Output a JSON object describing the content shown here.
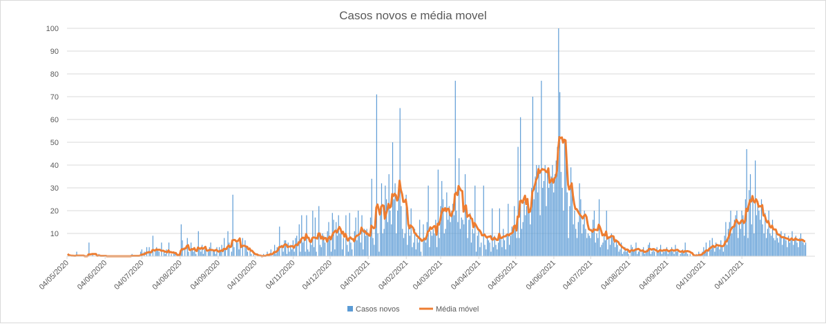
{
  "chart_data": {
    "type": "bar+line",
    "title": "Casos novos e média movel",
    "xlabel": "",
    "ylabel": "",
    "ylim": [
      0,
      100
    ],
    "yticks": [
      10,
      20,
      30,
      40,
      50,
      60,
      70,
      80,
      90,
      100
    ],
    "grid": true,
    "legend_position": "bottom",
    "start_date": "2020-05-04",
    "x_tick_labels": [
      "04/05/2020",
      "04/06/2020",
      "04/07/2020",
      "04/08/2020",
      "04/09/2020",
      "04/10/2020",
      "04/11/2020",
      "04/12/2020",
      "04/01/2021",
      "04/02/2021",
      "04/03/2021",
      "04/04/2021",
      "04/05/2021",
      "04/06/2021",
      "04/07/2021",
      "04/08/2021",
      "04/09/2021",
      "04/10/2021",
      "04/11/2021"
    ],
    "moving_average_window": 7,
    "series": [
      {
        "name": "Casos novos",
        "type": "bar",
        "color": "#5B9BD5",
        "values": [
          1,
          0,
          0,
          0,
          0,
          0,
          0,
          2,
          0,
          0,
          0,
          0,
          0,
          0,
          0,
          0,
          0,
          6,
          0,
          0,
          1,
          0,
          0,
          0,
          0,
          1,
          0,
          0,
          0,
          0,
          0,
          0,
          0,
          0,
          0,
          0,
          0,
          0,
          0,
          0,
          0,
          0,
          0,
          0,
          0,
          0,
          0,
          0,
          0,
          0,
          0,
          0,
          1,
          0,
          0,
          0,
          0,
          0,
          0,
          2,
          3,
          0,
          2,
          0,
          4,
          0,
          4,
          2,
          0,
          9,
          0,
          2,
          4,
          3,
          2,
          0,
          6,
          0,
          2,
          1,
          3,
          0,
          6,
          0,
          1,
          0,
          2,
          1,
          0,
          0,
          0,
          0,
          14,
          7,
          0,
          3,
          0,
          8,
          2,
          0,
          6,
          3,
          2,
          4,
          1,
          0,
          11,
          3,
          2,
          5,
          1,
          3,
          4,
          0,
          2,
          4,
          6,
          0,
          3,
          2,
          1,
          4,
          0,
          4,
          2,
          5,
          0,
          8,
          3,
          0,
          11,
          6,
          0,
          2,
          27,
          4,
          0,
          7,
          6,
          3,
          8,
          0,
          8,
          0,
          7,
          4,
          2,
          0,
          3,
          1,
          0,
          2,
          0,
          0,
          0,
          0,
          0,
          0,
          0,
          1,
          0,
          0,
          2,
          1,
          0,
          3,
          0,
          2,
          5,
          1,
          4,
          3,
          13,
          0,
          5,
          2,
          7,
          7,
          1,
          6,
          2,
          5,
          3,
          7,
          2,
          8,
          9,
          0,
          14,
          2,
          18,
          6,
          8,
          2,
          18,
          3,
          2,
          6,
          5,
          20,
          4,
          17,
          2,
          0,
          22,
          5,
          4,
          10,
          9,
          6,
          0,
          11,
          15,
          9,
          2,
          19,
          16,
          3,
          15,
          9,
          18,
          10,
          12,
          3,
          8,
          0,
          18,
          5,
          2,
          19,
          6,
          3,
          0,
          11,
          17,
          7,
          20,
          9,
          6,
          18,
          3,
          12,
          9,
          12,
          10,
          0,
          17,
          34,
          8,
          5,
          14,
          71,
          10,
          2,
          18,
          32,
          10,
          12,
          31,
          25,
          15,
          36,
          20,
          14,
          50,
          25,
          32,
          10,
          20,
          30,
          65,
          22,
          12,
          8,
          10,
          27,
          5,
          15,
          9,
          21,
          4,
          6,
          12,
          3,
          8,
          6,
          16,
          2,
          0,
          14,
          8,
          6,
          15,
          31,
          4,
          11,
          9,
          12,
          10,
          16,
          4,
          38,
          8,
          22,
          33,
          25,
          10,
          12,
          28,
          16,
          22,
          15,
          20,
          23,
          18,
          77,
          20,
          15,
          43,
          12,
          17,
          16,
          14,
          36,
          18,
          8,
          16,
          19,
          6,
          12,
          10,
          31,
          2,
          9,
          12,
          4,
          6,
          0,
          31,
          5,
          3,
          8,
          7,
          6,
          2,
          21,
          4,
          9,
          5,
          3,
          6,
          21,
          8,
          4,
          12,
          7,
          3,
          10,
          23,
          5,
          9,
          13,
          10,
          22,
          12,
          8,
          48,
          8,
          61,
          12,
          15,
          24,
          18,
          22,
          24,
          20,
          14,
          30,
          70,
          25,
          35,
          40,
          28,
          40,
          18,
          77,
          30,
          33,
          40,
          22,
          38,
          30,
          33,
          35,
          40,
          28,
          36,
          42,
          48,
          100,
          72,
          37,
          30,
          20,
          51,
          46,
          28,
          8,
          22,
          39,
          30,
          14,
          20,
          12,
          8,
          15,
          32,
          25,
          10,
          14,
          20,
          12,
          8,
          10,
          9,
          8,
          12,
          16,
          20,
          6,
          10,
          8,
          25,
          4,
          5,
          6,
          9,
          7,
          20,
          3,
          8,
          5,
          10,
          9,
          6,
          4,
          7,
          5,
          2,
          3,
          6,
          1,
          2,
          4,
          2,
          3,
          1,
          0,
          5,
          4,
          2,
          3,
          6,
          1,
          2,
          3,
          0,
          2,
          4,
          1,
          2,
          3,
          5,
          6,
          1,
          2,
          3,
          2,
          0,
          4,
          2,
          3,
          5,
          1,
          2,
          2,
          3,
          4,
          1,
          2,
          3,
          4,
          2,
          1,
          5,
          2,
          3,
          0,
          1,
          2,
          3,
          1,
          6,
          2,
          1,
          0,
          1,
          0,
          0,
          0,
          0,
          1,
          0,
          2,
          1,
          0,
          2,
          4,
          2,
          6,
          3,
          0,
          7,
          3,
          8,
          5,
          2,
          6,
          4,
          5,
          3,
          7,
          4,
          2,
          9,
          15,
          5,
          12,
          15,
          20,
          10,
          13,
          16,
          18,
          20,
          8,
          15,
          12,
          20,
          18,
          9,
          25,
          47,
          8,
          29,
          36,
          14,
          26,
          10,
          42,
          18,
          22,
          20,
          16,
          25,
          14,
          10,
          19,
          8,
          12,
          20,
          10,
          9,
          16,
          8,
          7,
          12,
          8,
          6,
          9,
          11,
          5,
          8,
          10,
          7,
          4,
          9,
          6,
          8,
          11,
          5,
          7,
          9,
          6,
          4,
          8,
          10,
          7,
          6,
          5,
          6
        ]
      },
      {
        "name": "Média móvel",
        "type": "line",
        "color": "#ED7D31",
        "derived_from": "Casos novos"
      }
    ]
  }
}
